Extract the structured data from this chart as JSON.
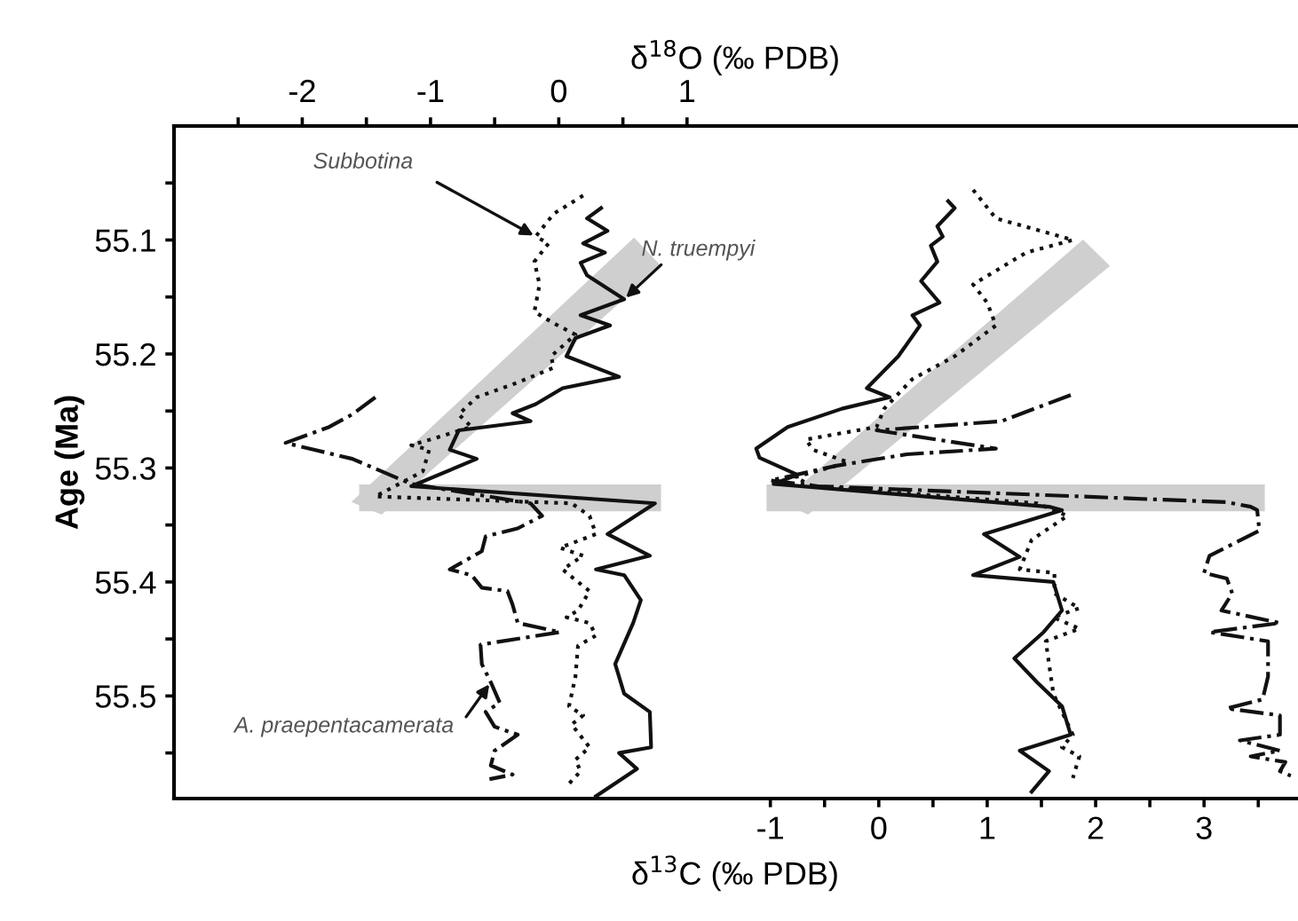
{
  "chart_data": {
    "type": "line",
    "xlabel": "δ$^{13}$C (‰ PDB)",
    "x2label": "δ$^{18}$O (‰ PDB)",
    "ylabel": "Age (Ma)",
    "xlim": [
      -6.5,
      3.85
    ],
    "xticks": [
      -1,
      {
        "value": -0.5,
        "label": null
      },
      0,
      {
        "value": 0.5,
        "label": null
      },
      1,
      {
        "value": 1.5,
        "label": null
      },
      2,
      {
        "value": 2.5,
        "label": null
      },
      3,
      {
        "value": 3.5,
        "label": null
      }
    ],
    "x2lim": [
      -3.0,
      5.75
    ],
    "x2ticks": [
      {
        "value": -2.5,
        "label": null
      },
      -2,
      {
        "value": -1.5,
        "label": null
      },
      -1,
      {
        "value": -0.5,
        "label": null
      },
      0,
      {
        "value": 0.5,
        "label": null
      },
      1
    ],
    "ylim": [
      55.59,
      55.0
    ],
    "yticks": [
      {
        "value": 55.05,
        "label": null
      },
      55.1,
      {
        "value": 55.15,
        "label": null
      },
      55.2,
      {
        "value": 55.25,
        "label": null
      },
      55.3,
      {
        "value": 55.35,
        "label": null
      },
      55.4,
      {
        "value": 55.45,
        "label": null
      },
      55.5,
      {
        "value": 55.55,
        "label": null
      }
    ],
    "grid": false,
    "legend": false,
    "series": [
      {
        "name": "Subbotina",
        "axis": "x2",
        "line_style": "dotted",
        "color": "#111111",
        "x": [
          0.19,
          -0.04,
          -0.18,
          -0.08,
          -0.19,
          -0.15,
          -0.19,
          -0.04,
          0.13,
          -0.06,
          -0.04,
          -0.32,
          -0.64,
          -0.78,
          -0.68,
          -1.06,
          -1.15,
          -1.01,
          -1.06,
          -1.43,
          0.1,
          0.24,
          0.29,
          0.01,
          0.19,
          0.03,
          0.15,
          0.24,
          0.15,
          0.06,
          0.24,
          0.29,
          0.15,
          0.13,
          0.08,
          0.19,
          0.1,
          0.24,
          0.13,
          0.17,
          0.08
        ],
        "values": [
          55.061,
          55.077,
          55.097,
          55.103,
          55.119,
          55.139,
          55.163,
          55.173,
          55.183,
          55.202,
          55.212,
          55.225,
          55.238,
          55.253,
          55.264,
          55.277,
          55.28,
          55.284,
          55.303,
          55.325,
          55.331,
          55.342,
          55.358,
          55.37,
          55.377,
          55.389,
          55.4,
          55.408,
          55.425,
          55.431,
          55.436,
          55.447,
          55.456,
          55.483,
          55.509,
          55.517,
          55.525,
          55.545,
          55.556,
          55.566,
          55.577
        ]
      },
      {
        "name": "N. truempyi",
        "axis": "x2",
        "line_style": "solid",
        "color": "#111111",
        "x": [
          0.33,
          0.22,
          0.38,
          0.19,
          0.36,
          0.17,
          0.22,
          0.51,
          0.17,
          0.4,
          0.13,
          0.06,
          0.47,
          0.03,
          -0.18,
          -0.36,
          -0.22,
          -0.78,
          -0.85,
          -0.64,
          -1.15,
          0.75,
          0.38,
          0.71,
          0.29,
          0.51,
          0.64,
          0.58,
          0.44,
          0.51,
          0.71,
          0.72,
          0.47,
          0.61,
          0.29
        ],
        "values": [
          55.072,
          55.081,
          55.092,
          55.103,
          55.111,
          55.12,
          55.131,
          55.152,
          55.166,
          55.175,
          55.186,
          55.202,
          55.22,
          55.23,
          55.244,
          55.252,
          55.259,
          55.267,
          55.284,
          55.292,
          55.316,
          55.331,
          55.358,
          55.377,
          55.389,
          55.394,
          55.416,
          55.436,
          55.472,
          55.498,
          55.514,
          55.545,
          55.55,
          55.564,
          55.588
        ]
      },
      {
        "name": "A. praepentacamerata",
        "axis": "x2",
        "line_style": "dashdot",
        "color": "#111111",
        "x": [
          -1.43,
          -1.61,
          -1.79,
          -2.13,
          -1.61,
          -1.15,
          -0.22,
          -0.13,
          -0.32,
          -0.57,
          -0.6,
          -0.85,
          -0.68,
          -0.6,
          -0.4,
          -0.36,
          -0.32,
          0.01,
          -0.61,
          -0.6,
          -0.53,
          -0.46,
          -0.57,
          -0.5,
          -0.32,
          -0.5,
          -0.53,
          -0.36,
          -0.54
        ],
        "values": [
          55.238,
          55.253,
          55.264,
          55.278,
          55.292,
          55.314,
          55.331,
          55.342,
          55.353,
          55.36,
          55.373,
          55.389,
          55.394,
          55.405,
          55.408,
          55.42,
          55.436,
          55.444,
          55.455,
          55.472,
          55.488,
          55.506,
          55.514,
          55.527,
          55.534,
          55.548,
          55.561,
          55.569,
          55.573
        ]
      },
      {
        "line_style": "dotted",
        "color": "#111111",
        "x": [
          0.87,
          1.08,
          1.79,
          1.36,
          0.87,
          1.0,
          1.08,
          0.7,
          0.31,
          0.05,
          -0.02,
          -0.67,
          -0.61,
          -0.28,
          -0.77,
          -0.61,
          1.46,
          1.74,
          1.41,
          1.3,
          1.62,
          1.62,
          1.85,
          1.61,
          1.85,
          1.54,
          1.61,
          1.79,
          1.69,
          1.85,
          1.79
        ],
        "values": [
          55.056,
          55.081,
          55.1,
          55.111,
          55.139,
          55.155,
          55.175,
          55.202,
          55.222,
          55.248,
          55.264,
          55.275,
          55.284,
          55.295,
          55.308,
          55.316,
          55.331,
          55.342,
          55.363,
          55.389,
          55.392,
          55.41,
          55.423,
          55.431,
          55.441,
          55.452,
          55.498,
          55.534,
          55.545,
          55.553,
          55.572
        ]
      },
      {
        "line_style": "solid",
        "color": "#111111",
        "x": [
          0.64,
          0.7,
          0.54,
          0.59,
          0.48,
          0.54,
          0.39,
          0.56,
          0.31,
          0.38,
          0.18,
          -0.11,
          0.1,
          -0.34,
          -0.84,
          -1.13,
          -1.1,
          -0.75,
          -0.97,
          1.57,
          1.69,
          0.97,
          1.3,
          0.87,
          1.61,
          1.69,
          1.52,
          1.25,
          1.46,
          1.69,
          1.77,
          1.3,
          1.57,
          1.41
        ],
        "values": [
          55.066,
          55.072,
          55.088,
          55.097,
          55.105,
          55.119,
          55.136,
          55.155,
          55.166,
          55.175,
          55.202,
          55.23,
          55.238,
          55.248,
          55.264,
          55.283,
          55.291,
          55.306,
          55.314,
          55.334,
          55.337,
          55.358,
          55.378,
          55.394,
          55.4,
          55.425,
          55.444,
          55.467,
          55.488,
          55.509,
          55.534,
          55.548,
          55.566,
          55.584
        ]
      },
      {
        "line_style": "dashdot",
        "color": "#111111",
        "x": [
          1.77,
          1.13,
          -0.02,
          1.08,
          0.26,
          -0.39,
          -1.0,
          -0.56,
          3.21,
          3.43,
          3.49,
          3.51,
          3.05,
          3.0,
          3.21,
          3.26,
          3.16,
          3.7,
          3.05,
          3.59,
          3.59,
          3.54,
          3.21,
          3.7,
          3.7,
          3.33,
          3.7,
          3.43,
          3.75,
          3.7,
          3.8
        ],
        "values": [
          55.236,
          55.259,
          55.267,
          55.283,
          55.288,
          55.298,
          55.311,
          55.316,
          55.33,
          55.334,
          55.337,
          55.355,
          55.377,
          55.392,
          55.397,
          55.41,
          55.425,
          55.436,
          55.444,
          55.452,
          55.483,
          55.503,
          55.511,
          55.517,
          55.534,
          55.539,
          55.548,
          55.553,
          55.558,
          55.566,
          55.57
        ]
      }
    ]
  }
}
